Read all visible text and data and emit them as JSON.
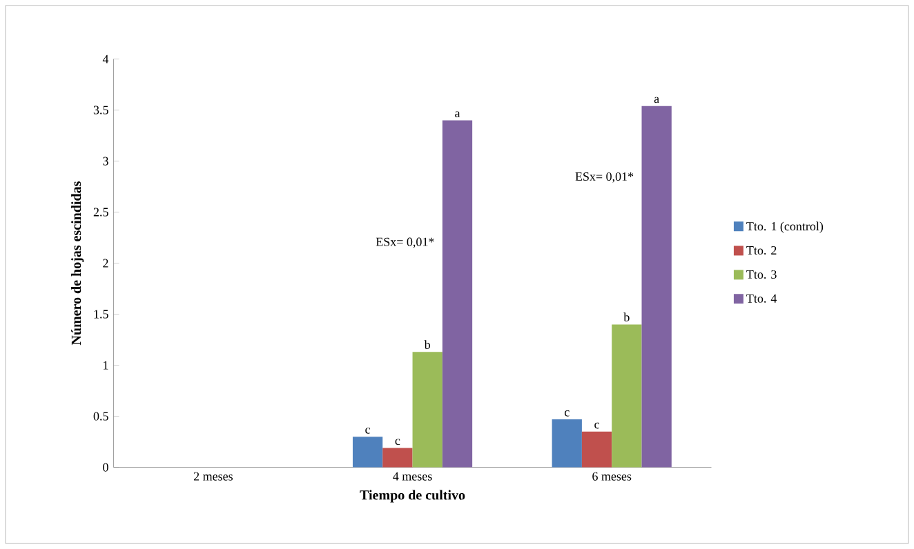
{
  "chart_data": {
    "type": "bar",
    "xlabel": "Tiempo de cultivo",
    "ylabel": "Número de hojas escindidas",
    "categories": [
      "2 meses",
      "4 meses",
      "6 meses"
    ],
    "series": [
      {
        "name": "Tto. 1 (control)",
        "color": "#4f81bd",
        "values": [
          0,
          0.3,
          0.47
        ],
        "value_labels": [
          null,
          "c",
          "c"
        ]
      },
      {
        "name": "Tto. 2",
        "color": "#c0504d",
        "values": [
          0,
          0.19,
          0.35
        ],
        "value_labels": [
          null,
          "c",
          "c"
        ]
      },
      {
        "name": "Tto. 3",
        "color": "#9bbb59",
        "values": [
          0,
          1.13,
          1.4
        ],
        "value_labels": [
          null,
          "b",
          "b"
        ]
      },
      {
        "name": "Tto. 4",
        "color": "#8064a2",
        "values": [
          0,
          3.4,
          3.54
        ],
        "value_labels": [
          null,
          "a",
          "a"
        ]
      }
    ],
    "annotations": [
      "ESx= 0,01*",
      "ESx= 0,01*"
    ],
    "ylim": [
      0,
      4
    ],
    "yticks": [
      0,
      0.5,
      1,
      1.5,
      2,
      2.5,
      3,
      3.5,
      4
    ],
    "grid": false,
    "legend": "right"
  }
}
